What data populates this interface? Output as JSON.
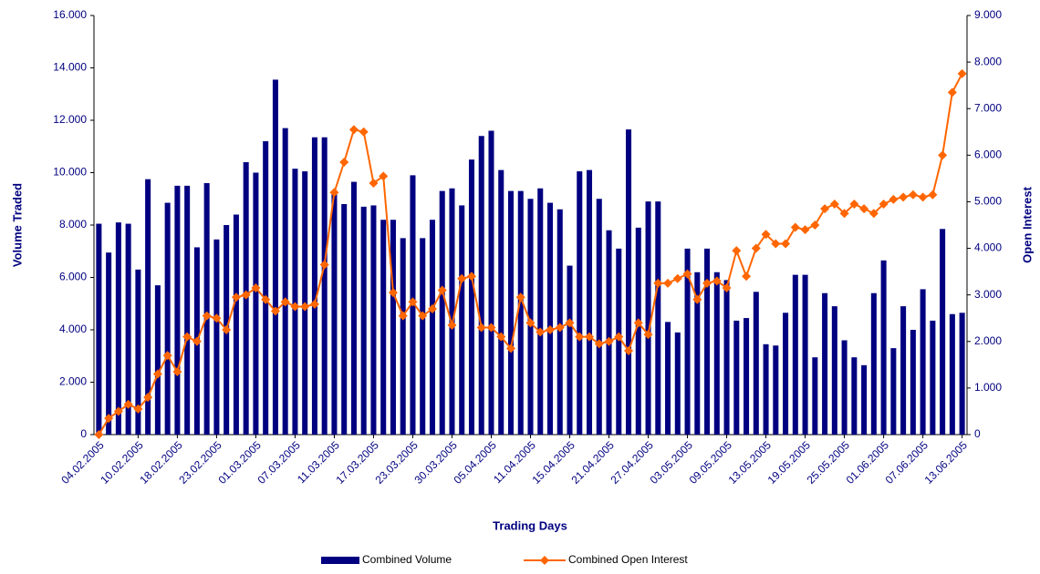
{
  "chart_data": {
    "type": "bar_line",
    "x_label": "Trading Days",
    "y_label": "Volume Traded",
    "y2_label": "Open Interest",
    "categories": [
      "04.02.2005",
      null,
      null,
      null,
      "10.02.2005",
      null,
      null,
      null,
      "18.02.2005",
      null,
      null,
      null,
      "23.02.2005",
      null,
      null,
      null,
      "01.03.2005",
      null,
      null,
      null,
      "07.03.2005",
      null,
      null,
      null,
      "11.03.2005",
      null,
      null,
      null,
      "17.03.2005",
      null,
      null,
      null,
      "23.03.2005",
      null,
      null,
      null,
      "30.03.2005",
      null,
      null,
      null,
      "05.04.2005",
      null,
      null,
      null,
      "11.04.2005",
      null,
      null,
      null,
      "15.04.2005",
      null,
      null,
      null,
      "21.04.2005",
      null,
      null,
      null,
      "27.04.2005",
      null,
      null,
      null,
      "03.05.2005",
      null,
      null,
      null,
      "09.05.2005",
      null,
      null,
      null,
      "13.05.2005",
      null,
      null,
      null,
      "19.05.2005",
      null,
      null,
      null,
      "25.05.2005",
      null,
      null,
      null,
      "01.06.2005",
      null,
      null,
      null,
      "07.06.2005",
      null,
      null,
      null,
      "13.06.2005"
    ],
    "series": [
      {
        "name": "Combined Volume",
        "color": "#000080",
        "kind": "bar",
        "values": [
          8050,
          6950,
          8100,
          8050,
          6300,
          9750,
          5700,
          8850,
          9500,
          9500,
          7150,
          9600,
          7450,
          8000,
          8400,
          10400,
          10000,
          11200,
          13550,
          11700,
          10150,
          10050,
          11350,
          11350,
          9200,
          8800,
          9650,
          8700,
          8750,
          8200,
          8200,
          7500,
          9900,
          7500,
          8200,
          9300,
          9400,
          8750,
          10500,
          11400,
          11600,
          10100,
          9300,
          9300,
          9000,
          9400,
          8850,
          8600,
          6450,
          10050,
          10100,
          9000,
          7800,
          7100,
          11650,
          7900,
          8900,
          8900,
          4300,
          3900,
          7100,
          6200,
          7100,
          6200,
          5900,
          4350,
          4450,
          5450,
          3450,
          3400,
          4650,
          6100,
          6100,
          2950,
          5400,
          4900,
          3600,
          2950,
          2650,
          5400,
          6650,
          3300,
          4900,
          4000,
          5550,
          4350,
          7850,
          4600,
          4650
        ]
      },
      {
        "name": "Combined Open Interest",
        "color": "#ff6600",
        "kind": "line",
        "axis": "y2",
        "values": [
          0,
          350,
          500,
          650,
          550,
          800,
          1300,
          1700,
          1350,
          2100,
          2000,
          2550,
          2500,
          2250,
          2950,
          3000,
          3150,
          2900,
          2650,
          2850,
          2750,
          2750,
          2800,
          3650,
          5200,
          5850,
          6550,
          6500,
          5400,
          5550,
          3050,
          2550,
          2850,
          2550,
          2700,
          3100,
          2350,
          3350,
          3400,
          2300,
          2300,
          2100,
          1850,
          2950,
          2400,
          2200,
          2250,
          2300,
          2400,
          2100,
          2100,
          1950,
          2000,
          2100,
          1800,
          2400,
          2150,
          3250,
          3250,
          3350,
          3450,
          2900,
          3250,
          3300,
          3150,
          3950,
          3400,
          4000,
          4300,
          4100,
          4100,
          4450,
          4400,
          4500,
          4850,
          4950,
          4750,
          4950,
          4850,
          4750,
          4950,
          5050,
          5100,
          5150,
          5100,
          5150,
          6000,
          7350,
          7750
        ]
      }
    ],
    "ylim": [
      0,
      16000
    ],
    "yticks": [
      0,
      {
        "value": 2000,
        "label": "2.000"
      },
      {
        "value": 4000,
        "label": "4.000"
      },
      {
        "value": 6000,
        "label": "6.000"
      },
      {
        "value": 8000,
        "label": "8.000"
      },
      {
        "value": 10000,
        "label": "10.000"
      },
      {
        "value": 12000,
        "label": "12.000"
      },
      {
        "value": 14000,
        "label": "14.000"
      },
      {
        "value": 16000,
        "label": "16.000"
      }
    ],
    "y2lim": [
      0,
      9000
    ],
    "y2ticks": [
      0,
      {
        "value": 1000,
        "label": "1.000"
      },
      {
        "value": 2000,
        "label": "2.000"
      },
      {
        "value": 3000,
        "label": "3.000"
      },
      {
        "value": 4000,
        "label": "4.000"
      },
      {
        "value": 5000,
        "label": "5.000"
      },
      {
        "value": 6000,
        "label": "6.000"
      },
      {
        "value": 7000,
        "label": "7.000"
      },
      {
        "value": 8000,
        "label": "8.000"
      },
      {
        "value": 9000,
        "label": "9.000"
      }
    ],
    "legend": "bottom"
  }
}
